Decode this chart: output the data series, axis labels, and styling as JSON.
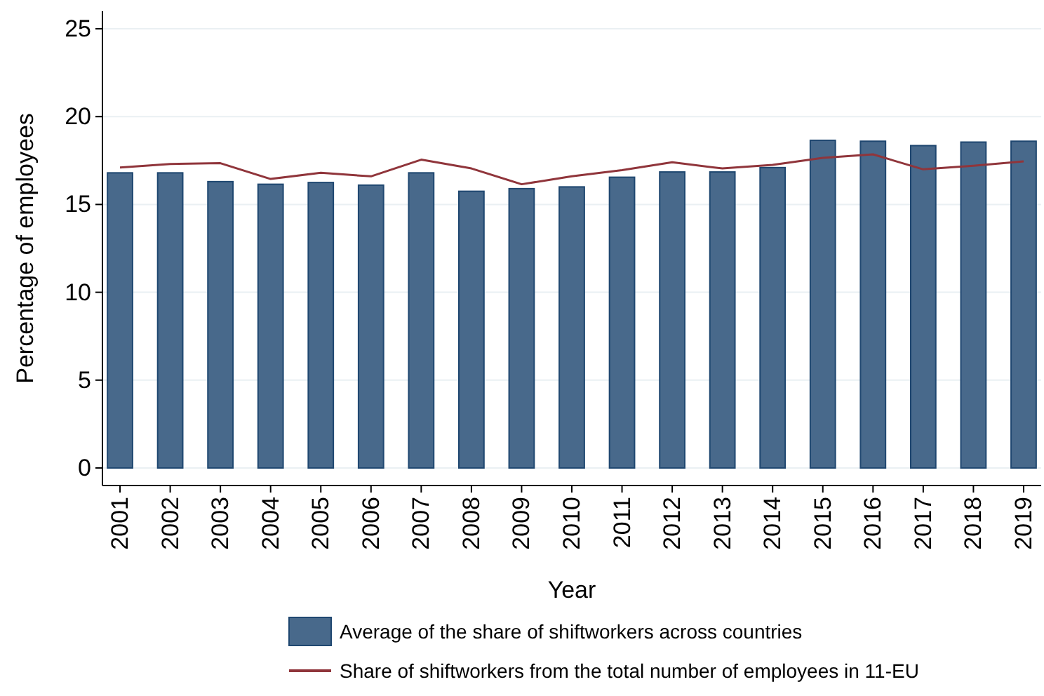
{
  "chart_data": {
    "type": "bar",
    "xlabel": "Year",
    "ylabel": "Percentage of employees",
    "categories": [
      "2001",
      "2002",
      "2003",
      "2004",
      "2005",
      "2006",
      "2007",
      "2008",
      "2009",
      "2010",
      "2011",
      "2012",
      "2013",
      "2014",
      "2015",
      "2016",
      "2017",
      "2018",
      "2019"
    ],
    "series": [
      {
        "name": "Average of the share of shiftworkers across countries",
        "type": "bar",
        "color": "#48698b",
        "values": [
          16.8,
          16.8,
          16.3,
          16.15,
          16.25,
          16.1,
          16.8,
          15.75,
          15.9,
          16.0,
          16.55,
          16.85,
          16.85,
          17.1,
          18.65,
          18.6,
          18.35,
          18.55,
          18.6
        ]
      },
      {
        "name": "Share of shiftworkers from the total number of employees in 11-EU",
        "type": "line",
        "color": "#90353b",
        "values": [
          17.1,
          17.3,
          17.35,
          16.45,
          16.8,
          16.6,
          17.55,
          17.05,
          16.15,
          16.6,
          16.95,
          17.4,
          17.05,
          17.25,
          17.65,
          17.85,
          17.0,
          17.2,
          17.45
        ]
      }
    ],
    "ylim": [
      -1,
      26
    ],
    "yticks": [
      0,
      5,
      10,
      15,
      20,
      25
    ],
    "grid": "y",
    "legend": "bottom",
    "marker": "none",
    "line_style": "solid"
  }
}
